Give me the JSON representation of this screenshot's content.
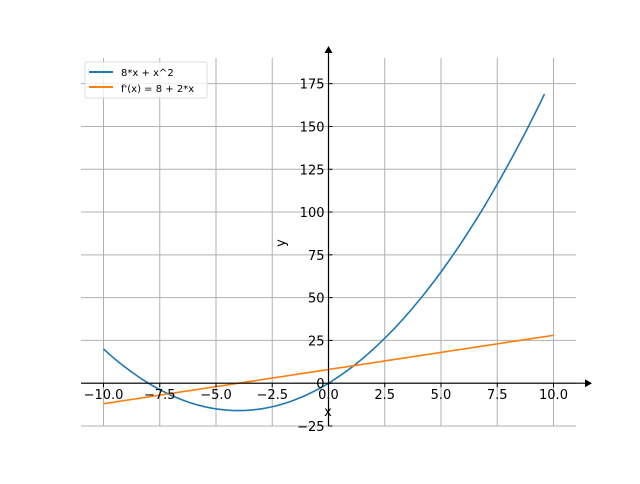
{
  "chart_data": {
    "type": "line",
    "title": "",
    "xlabel": "x",
    "ylabel": "y",
    "xlim": [
      -11,
      11
    ],
    "ylim": [
      -25,
      190
    ],
    "grid": true,
    "legend_position": "top-left",
    "xticks": [
      -10,
      -7.5,
      -5,
      -2.5,
      0,
      2.5,
      5,
      7.5,
      10
    ],
    "xtick_labels": [
      "−10.0",
      "−7.5",
      "−5.0",
      "−2.5",
      "0.0",
      "2.5",
      "5.0",
      "7.5",
      "10.0"
    ],
    "yticks": [
      -25,
      0,
      25,
      50,
      75,
      100,
      125,
      150,
      175
    ],
    "ytick_labels": [
      "−25",
      "0",
      "25",
      "50",
      "75",
      "100",
      "125",
      "150",
      "175"
    ],
    "series": [
      {
        "name": "8*x + x^2",
        "color": "#1f77b4",
        "expr": "8*x + x^2",
        "x_range": [
          -10,
          9.6
        ],
        "points": [
          [
            -10,
            20
          ],
          [
            -8,
            0
          ],
          [
            -6,
            -12
          ],
          [
            -4,
            -16
          ],
          [
            -2,
            -12
          ],
          [
            0,
            0
          ],
          [
            2,
            20
          ],
          [
            4,
            48
          ],
          [
            6,
            84
          ],
          [
            8,
            128
          ],
          [
            9.6,
            169
          ]
        ]
      },
      {
        "name": "f'(x) = 8 + 2*x",
        "color": "#ff7f0e",
        "expr": "8 + 2*x",
        "x_range": [
          -10,
          10
        ],
        "points": [
          [
            -10,
            -12
          ],
          [
            0,
            8
          ],
          [
            10,
            28
          ]
        ]
      }
    ]
  }
}
